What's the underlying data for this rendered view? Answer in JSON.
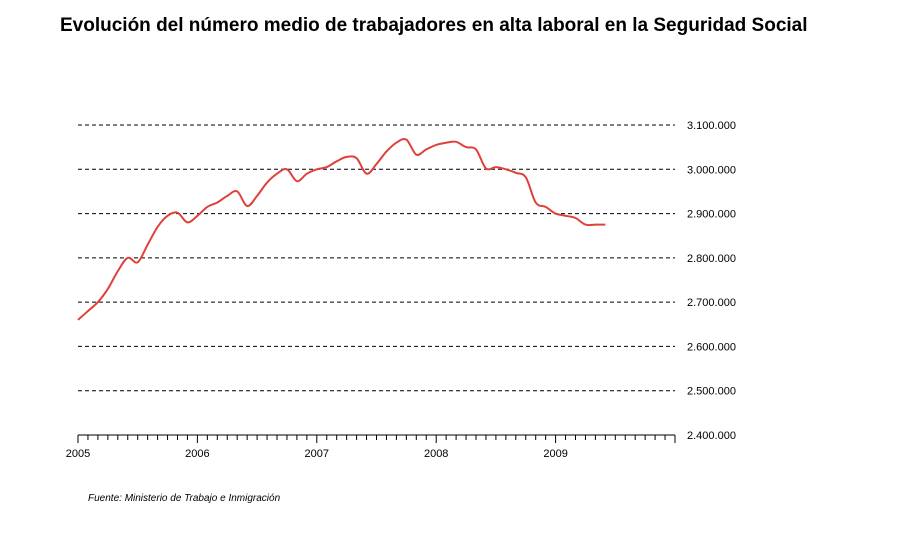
{
  "title": "Evolución del número medio de trabajadores en alta laboral en la Seguridad Social",
  "source": "Fuente: Ministerio de Trabajo e Inmigración",
  "colors": {
    "line": "#e0403a",
    "grid": "#000000"
  },
  "chart_data": {
    "type": "line",
    "title": "Evolución del número medio de trabajadores en alta laboral en la Seguridad Social",
    "xlabel": "",
    "ylabel": "",
    "x_tick_labels": [
      "2005",
      "2006",
      "2007",
      "2008",
      "2009"
    ],
    "y_tick_labels": [
      "3.100.000",
      "3.000.000",
      "2.900.000",
      "2.800.000",
      "2.700.000",
      "2.600.000",
      "2.500.000",
      "2.400.000"
    ],
    "y_ticks": [
      3100000,
      3000000,
      2900000,
      2800000,
      2700000,
      2600000,
      2500000,
      2400000
    ],
    "ylim": [
      2400000,
      3100000
    ],
    "xlim": [
      "2005-01",
      "2009-12"
    ],
    "grid": true,
    "y_axis_position": "right",
    "series": [
      {
        "x": [
          "2005-01",
          "2005-02",
          "2005-03",
          "2005-04",
          "2005-05",
          "2005-06",
          "2005-07",
          "2005-08",
          "2005-09",
          "2005-10",
          "2005-11",
          "2005-12",
          "2006-01",
          "2006-02",
          "2006-03",
          "2006-04",
          "2006-05",
          "2006-06",
          "2006-07",
          "2006-08",
          "2006-09",
          "2006-10",
          "2006-11",
          "2006-12",
          "2007-01",
          "2007-02",
          "2007-03",
          "2007-04",
          "2007-05",
          "2007-06",
          "2007-07",
          "2007-08",
          "2007-09",
          "2007-10",
          "2007-11",
          "2007-12",
          "2008-01",
          "2008-02",
          "2008-03",
          "2008-04",
          "2008-05",
          "2008-06",
          "2008-07",
          "2008-08",
          "2008-09",
          "2008-10",
          "2008-11",
          "2008-12",
          "2009-01",
          "2009-02",
          "2009-03",
          "2009-04",
          "2009-05",
          "2009-06"
        ],
        "values": [
          2660000,
          2680000,
          2700000,
          2730000,
          2770000,
          2800000,
          2790000,
          2830000,
          2870000,
          2895000,
          2902000,
          2880000,
          2895000,
          2915000,
          2925000,
          2940000,
          2950000,
          2917000,
          2940000,
          2970000,
          2990000,
          3000000,
          2973000,
          2990000,
          3000000,
          3005000,
          3018000,
          3028000,
          3025000,
          2990000,
          3012000,
          3040000,
          3060000,
          3067000,
          3033000,
          3045000,
          3055000,
          3060000,
          3062000,
          3050000,
          3045000,
          3002000,
          3005000,
          3000000,
          2992000,
          2982000,
          2925000,
          2915000,
          2900000,
          2895000,
          2890000,
          2875000,
          2875000,
          2875000
        ]
      }
    ]
  }
}
